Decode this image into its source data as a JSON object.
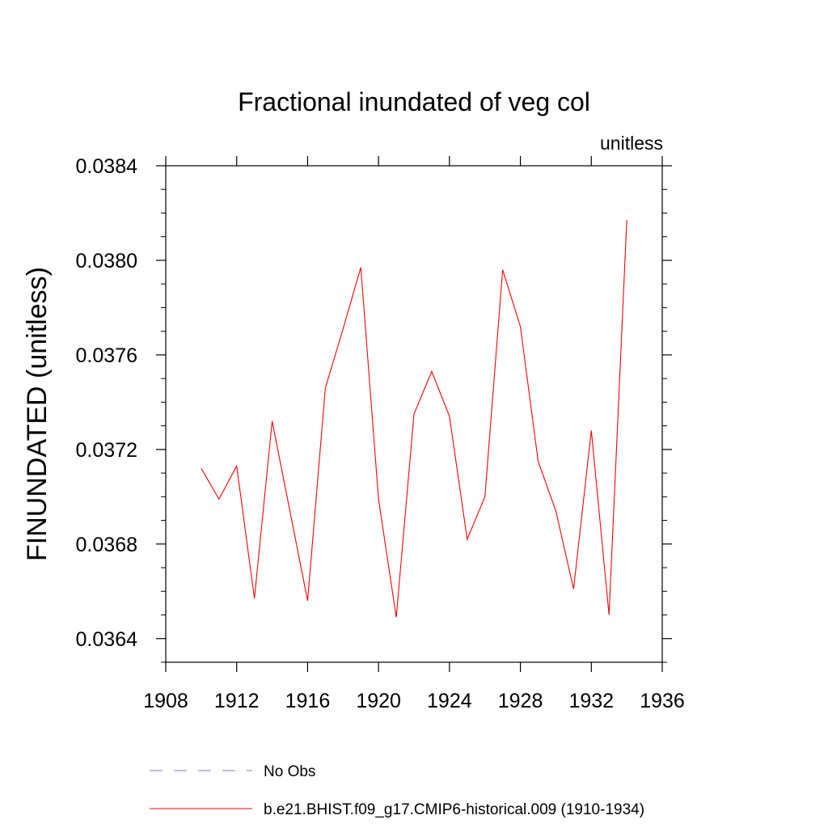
{
  "chart_data": {
    "type": "line",
    "title": "Fractional inundated of veg col",
    "units_label": "unitless",
    "ylabel": "FINUNDATED  (unitless)",
    "xlabel": "",
    "xlim": [
      1908,
      1936
    ],
    "ylim": [
      0.0363,
      0.0384
    ],
    "x_ticks": [
      1908,
      1912,
      1916,
      1920,
      1924,
      1928,
      1932,
      1936
    ],
    "x_tick_labels": [
      "1908",
      "1912",
      "1916",
      "1920",
      "1924",
      "1928",
      "1932",
      "1936"
    ],
    "y_ticks": [
      0.0364,
      0.0368,
      0.0372,
      0.0376,
      0.038,
      0.0384
    ],
    "y_tick_labels": [
      "0.0364",
      "0.0368",
      "0.0372",
      "0.0376",
      "0.0380",
      "0.0384"
    ],
    "grid": false,
    "series": [
      {
        "name": "b.e21.BHIST.f09_g17.CMIP6-historical.009 (1910-1934)",
        "color": "#ff0000",
        "style": "solid",
        "x": [
          1910,
          1911,
          1912,
          1913,
          1914,
          1915,
          1916,
          1917,
          1918,
          1919,
          1920,
          1921,
          1922,
          1923,
          1924,
          1925,
          1926,
          1927,
          1928,
          1929,
          1930,
          1931,
          1932,
          1933,
          1934
        ],
        "values": [
          0.03712,
          0.03699,
          0.03713,
          0.03657,
          0.03732,
          0.03694,
          0.03656,
          0.03746,
          0.03771,
          0.03797,
          0.03699,
          0.03649,
          0.03735,
          0.03753,
          0.03734,
          0.03682,
          0.037,
          0.03796,
          0.03772,
          0.03715,
          0.03694,
          0.03661,
          0.03728,
          0.0365,
          0.03817
        ]
      }
    ],
    "legend": {
      "position": "bottom",
      "entries": [
        {
          "label": "No Obs",
          "color": "#8080c0",
          "style": "dashed"
        },
        {
          "label": "b.e21.BHIST.f09_g17.CMIP6-historical.009 (1910-1934)",
          "color": "#ff0000",
          "style": "solid"
        }
      ]
    }
  }
}
